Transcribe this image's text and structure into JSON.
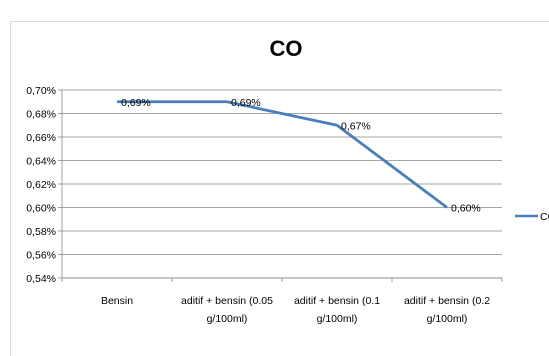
{
  "chart_data": {
    "type": "line",
    "title": "CO",
    "categories": [
      [
        "Bensin"
      ],
      [
        "aditif + bensin (0.05",
        "g/100ml)"
      ],
      [
        "aditif + bensin (0.1",
        "g/100ml)"
      ],
      [
        "aditif + bensin (0.2",
        "g/100ml)"
      ]
    ],
    "series": [
      {
        "name": "CO",
        "values": [
          0.69,
          0.69,
          0.67,
          0.6
        ],
        "labels": [
          "0,69%",
          "0,69%",
          "0,67%",
          "0,60%"
        ],
        "color": "#4a7ebb"
      }
    ],
    "ylim": [
      0.54,
      0.7
    ],
    "yticks": [
      "0,54%",
      "0,56%",
      "0,58%",
      "0,60%",
      "0,62%",
      "0,64%",
      "0,66%",
      "0,68%",
      "0,70%"
    ],
    "grid": true,
    "legend": "right"
  }
}
